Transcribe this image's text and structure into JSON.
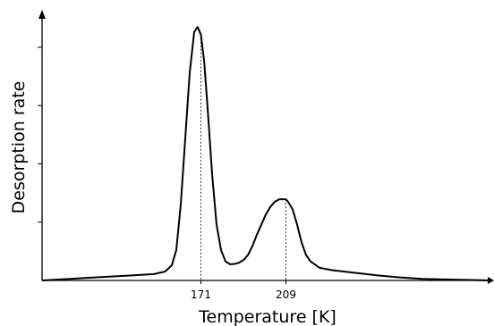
{
  "chart_data": {
    "type": "line",
    "title": "",
    "xlabel": "Temperature [K]",
    "ylabel": "Desorption rate",
    "xlim": [
      100,
      300
    ],
    "ylim": [
      0,
      1.05
    ],
    "x_ticks_labeled": [
      171,
      209
    ],
    "y_ticks_unlabeled": [
      0.23,
      0.46,
      0.69,
      0.92
    ],
    "peak_markers": [
      {
        "x": 171,
        "label": "171"
      },
      {
        "x": 209,
        "label": "209"
      }
    ],
    "grid": false,
    "legend": "none",
    "series": [
      {
        "color": "#000000",
        "x": [
          100,
          110,
          120,
          130,
          140,
          150,
          155,
          158,
          160,
          162,
          164,
          166,
          168,
          169.5,
          171,
          172.5,
          174,
          176,
          178,
          180,
          182,
          184,
          186,
          188,
          190,
          192,
          194,
          196,
          198,
          200,
          202,
          204,
          206,
          208,
          209,
          210,
          212,
          214,
          216,
          218,
          220,
          224,
          230,
          240,
          250,
          260,
          270,
          280,
          290,
          300
        ],
        "y": [
          0.0,
          0.005,
          0.01,
          0.015,
          0.02,
          0.025,
          0.035,
          0.06,
          0.12,
          0.3,
          0.56,
          0.82,
          0.98,
          1.0,
          0.97,
          0.86,
          0.68,
          0.42,
          0.22,
          0.12,
          0.075,
          0.064,
          0.065,
          0.07,
          0.08,
          0.1,
          0.135,
          0.18,
          0.22,
          0.26,
          0.29,
          0.31,
          0.32,
          0.32,
          0.32,
          0.31,
          0.28,
          0.22,
          0.15,
          0.1,
          0.075,
          0.05,
          0.04,
          0.03,
          0.02,
          0.012,
          0.006,
          0.004,
          0.002,
          0.0
        ]
      }
    ]
  }
}
